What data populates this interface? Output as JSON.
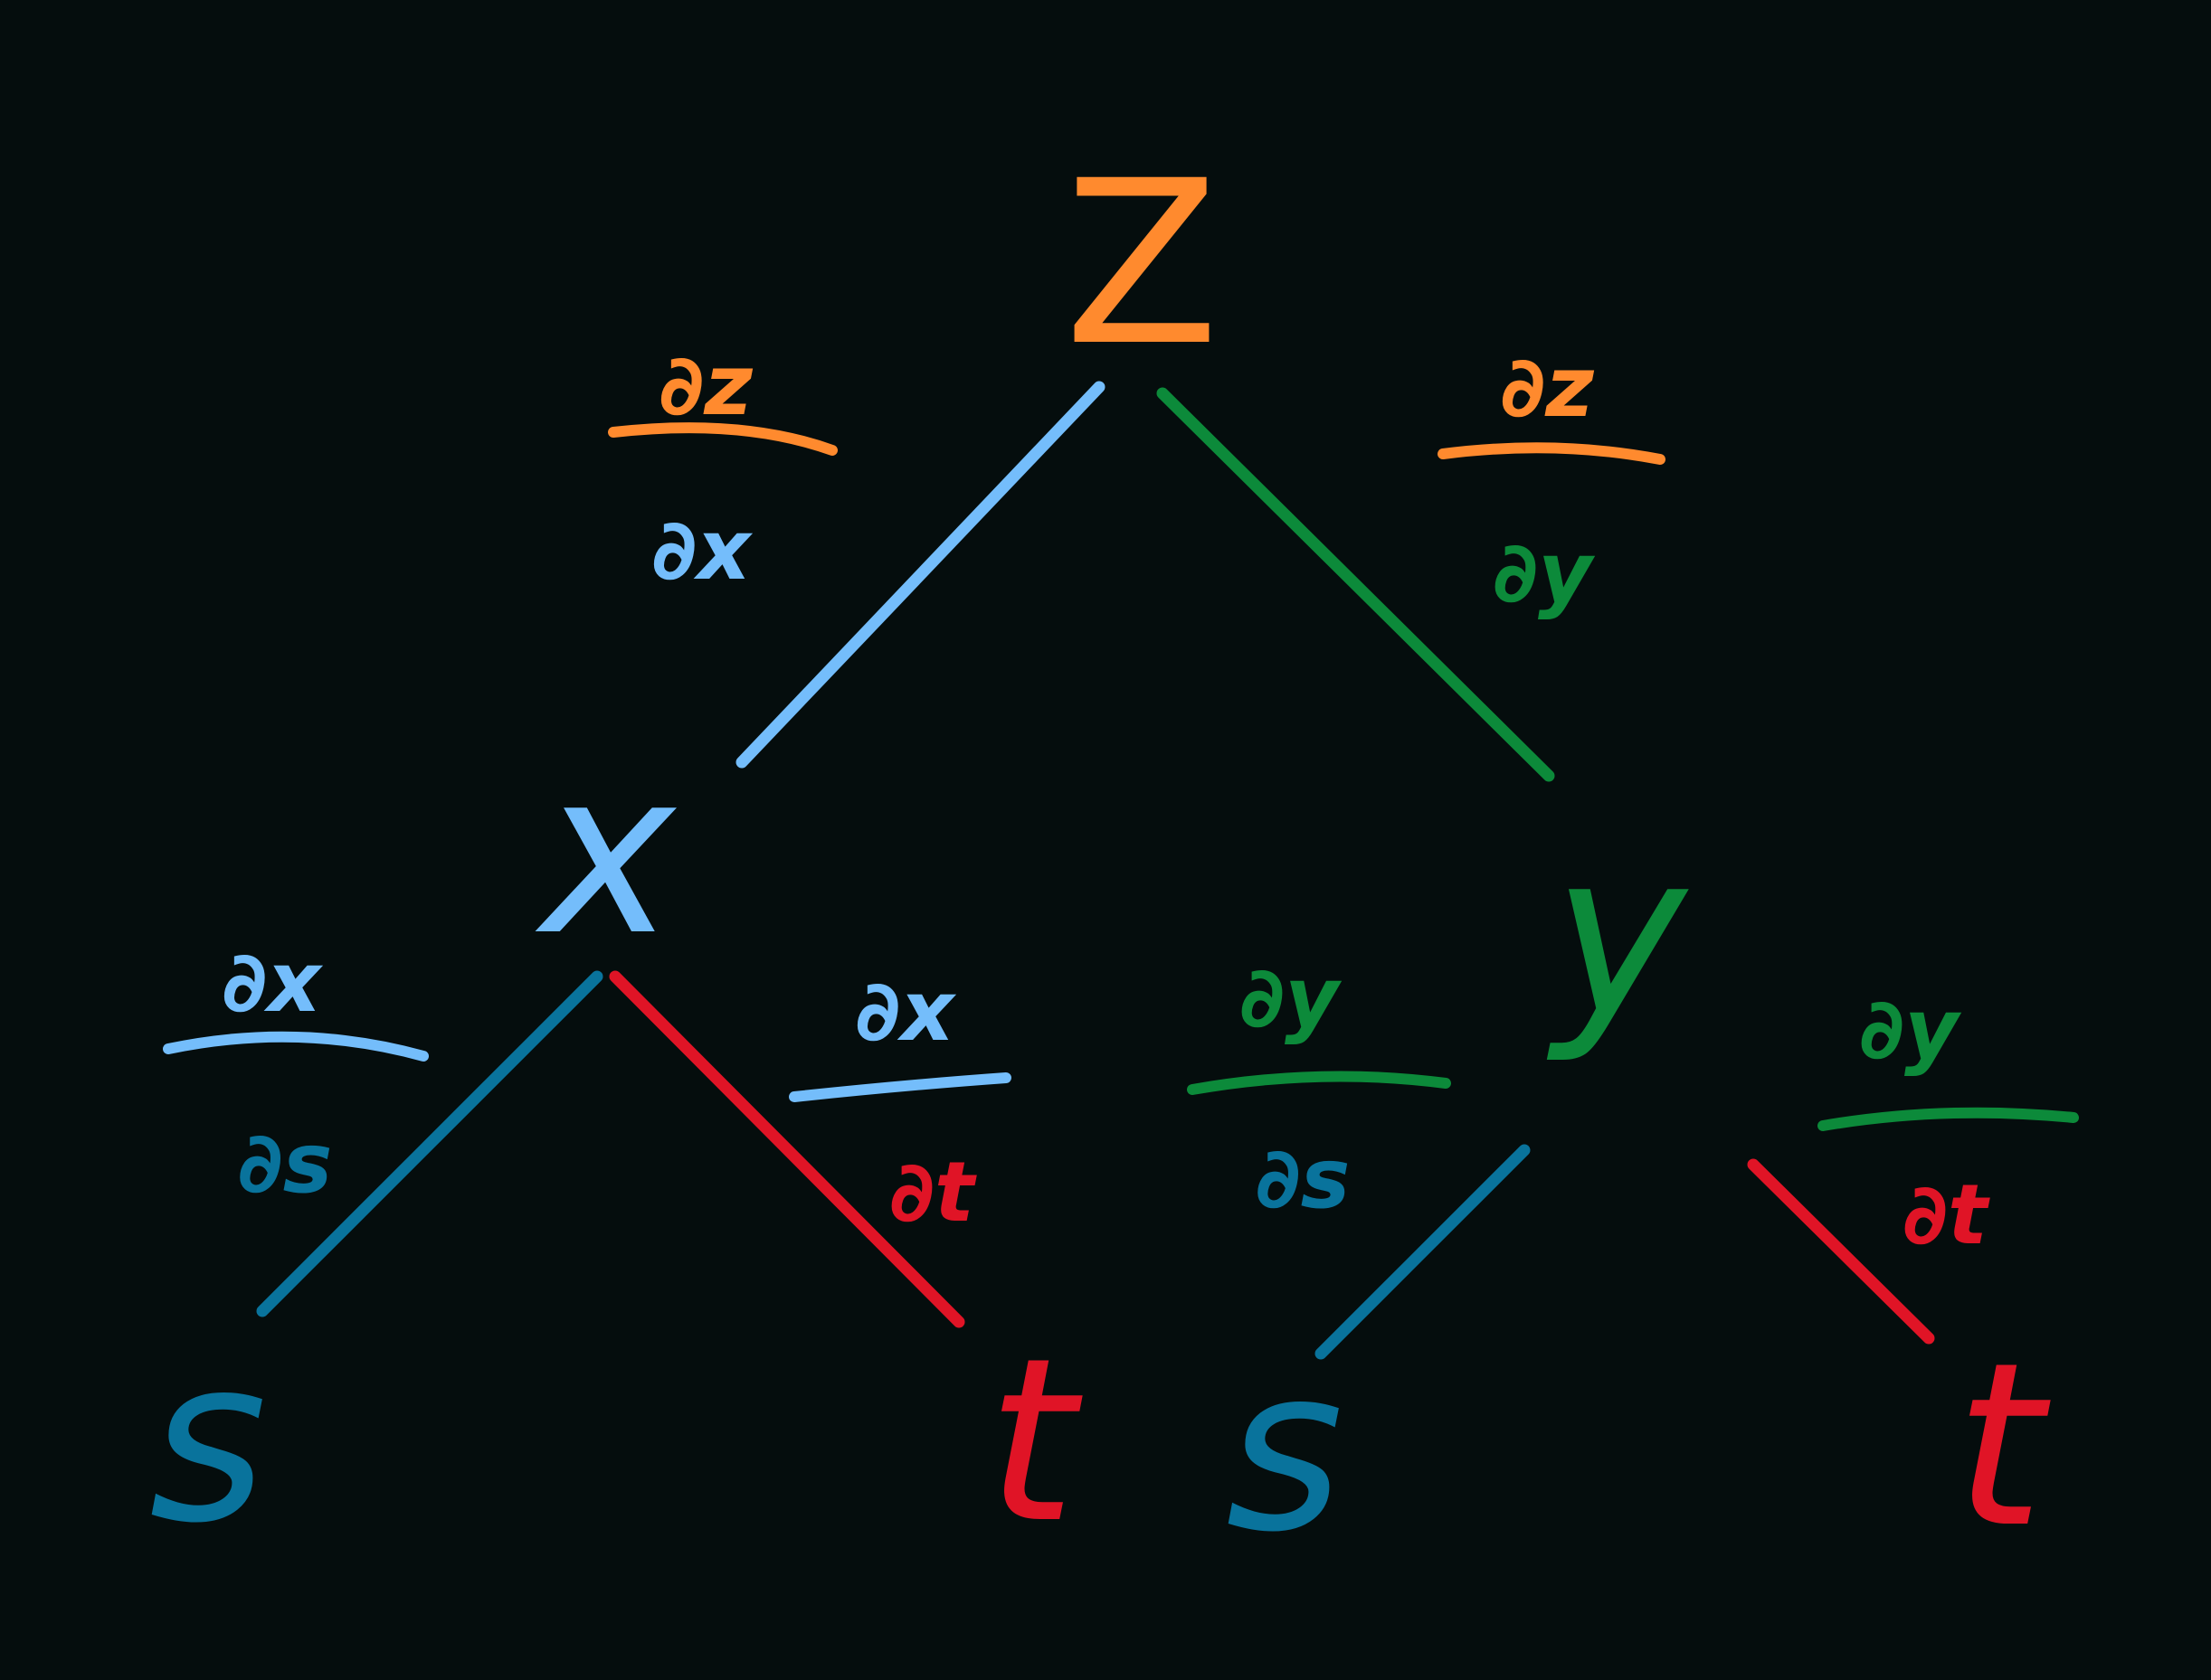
{
  "colors": {
    "background": "#050d0d",
    "z": "#ff8a2e",
    "x": "#74bdfb",
    "y": "#0c8a3a",
    "s": "#09739c",
    "t": "#e01426"
  },
  "nodes": {
    "z": "Z",
    "x": "x",
    "y": "y",
    "s1": "s",
    "t1": "t",
    "s2": "s",
    "t2": "t"
  },
  "fractions": {
    "dz_dx": {
      "numerator": "∂z",
      "denominator": "∂x"
    },
    "dz_dy": {
      "numerator": "∂z",
      "denominator": "∂y"
    },
    "dx_ds": {
      "numerator": "∂x",
      "denominator": "∂s"
    },
    "dx_dt": {
      "numerator": "∂x",
      "denominator": "∂t"
    },
    "dy_ds": {
      "numerator": "∂y",
      "denominator": "∂s"
    },
    "dy_dt": {
      "numerator": "∂y",
      "denominator": "∂t"
    }
  }
}
